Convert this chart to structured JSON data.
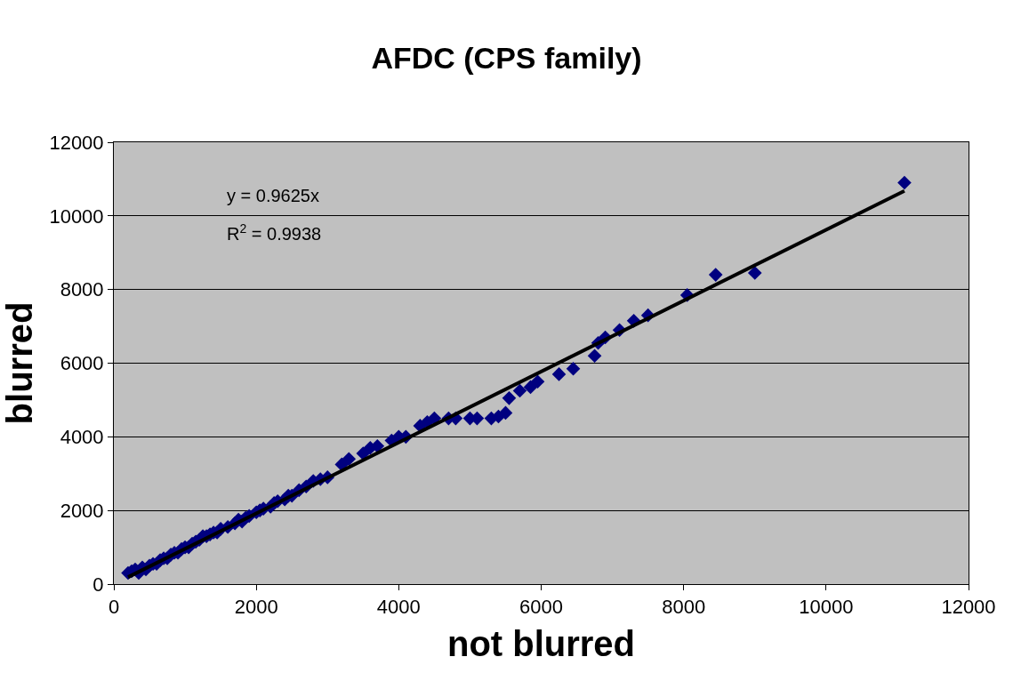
{
  "chart_data": {
    "type": "scatter",
    "title": "AFDC (CPS family)",
    "xlabel": "not blurred",
    "ylabel": "blurred",
    "xlim": [
      0,
      12000
    ],
    "xticks": [
      0,
      2000,
      4000,
      6000,
      8000,
      10000,
      12000
    ],
    "ylim": [
      0,
      12000
    ],
    "yticks": [
      0,
      2000,
      4000,
      6000,
      8000,
      10000,
      12000
    ],
    "grid": "y",
    "marker": "diamond",
    "annotations": [
      "y = 0.9625x",
      "R$^{2}$ = 0.9938"
    ],
    "series": [
      {
        "color": "#000080",
        "x": [
          200,
          250,
          300,
          350,
          400,
          450,
          500,
          550,
          600,
          650,
          700,
          750,
          800,
          850,
          900,
          950,
          1000,
          1050,
          1100,
          1150,
          1200,
          1250,
          1300,
          1350,
          1400,
          1450,
          1500,
          1600,
          1700,
          1750,
          1800,
          1850,
          1900,
          2000,
          2050,
          2100,
          2200,
          2250,
          2300,
          2400,
          2450,
          2500,
          2600,
          2700,
          2800,
          2900,
          3000,
          3200,
          3300,
          3500,
          3600,
          3700,
          3900,
          4000,
          4100,
          4300,
          4400,
          4500,
          4700,
          4800,
          5000,
          5100,
          5300,
          5400,
          5500,
          5550,
          5700,
          5850,
          5950,
          6250,
          6450,
          6750,
          6800,
          6900,
          7100,
          7300,
          7500,
          8050,
          8450,
          9000,
          11100
        ],
        "values": [
          300,
          350,
          400,
          300,
          450,
          400,
          500,
          550,
          550,
          650,
          700,
          700,
          800,
          850,
          850,
          950,
          1000,
          1000,
          1100,
          1150,
          1200,
          1300,
          1300,
          1350,
          1400,
          1400,
          1500,
          1550,
          1650,
          1750,
          1700,
          1800,
          1850,
          1950,
          2000,
          2050,
          2100,
          2200,
          2250,
          2300,
          2400,
          2400,
          2550,
          2650,
          2800,
          2850,
          2900,
          3250,
          3400,
          3550,
          3700,
          3750,
          3900,
          4000,
          4000,
          4300,
          4400,
          4500,
          4500,
          4500,
          4500,
          4500,
          4500,
          4550,
          4650,
          5050,
          5250,
          5350,
          5500,
          5700,
          5850,
          6200,
          6550,
          6700,
          6900,
          7150,
          7300,
          7850,
          8400,
          8450,
          10900
        ]
      },
      {
        "type": "line",
        "color": "#000000",
        "marker": "none",
        "x": [
          200,
          11100
        ],
        "values": [
          190,
          10680
        ]
      }
    ]
  }
}
